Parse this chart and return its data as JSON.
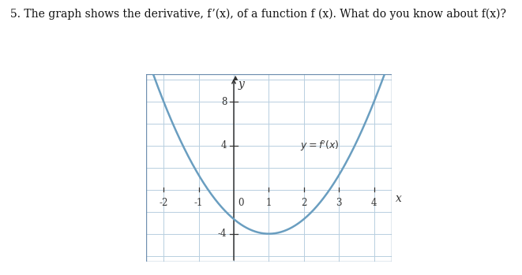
{
  "title": "5. The graph shows the derivative, f’(x), of a function f (x). What do you know about f(x)?",
  "curve_color": "#6a9ec0",
  "grid_color": "#b8cfe0",
  "border_color": "#7090b0",
  "axis_color": "#333333",
  "background_color": "#ffffff",
  "xlim": [
    -2.5,
    4.5
  ],
  "ylim": [
    -6.5,
    10.5
  ],
  "xticks": [
    -2,
    -1,
    1,
    2,
    3,
    4
  ],
  "yticks": [
    -4,
    4,
    8
  ],
  "parabola_vertex_x": 1.0,
  "parabola_vertex_y": -4.0,
  "parabola_a": 1.333,
  "fig_width": 6.61,
  "fig_height": 3.49,
  "dpi": 100,
  "title_fontsize": 10,
  "tick_fontsize": 8.5,
  "label_fontsize": 10
}
